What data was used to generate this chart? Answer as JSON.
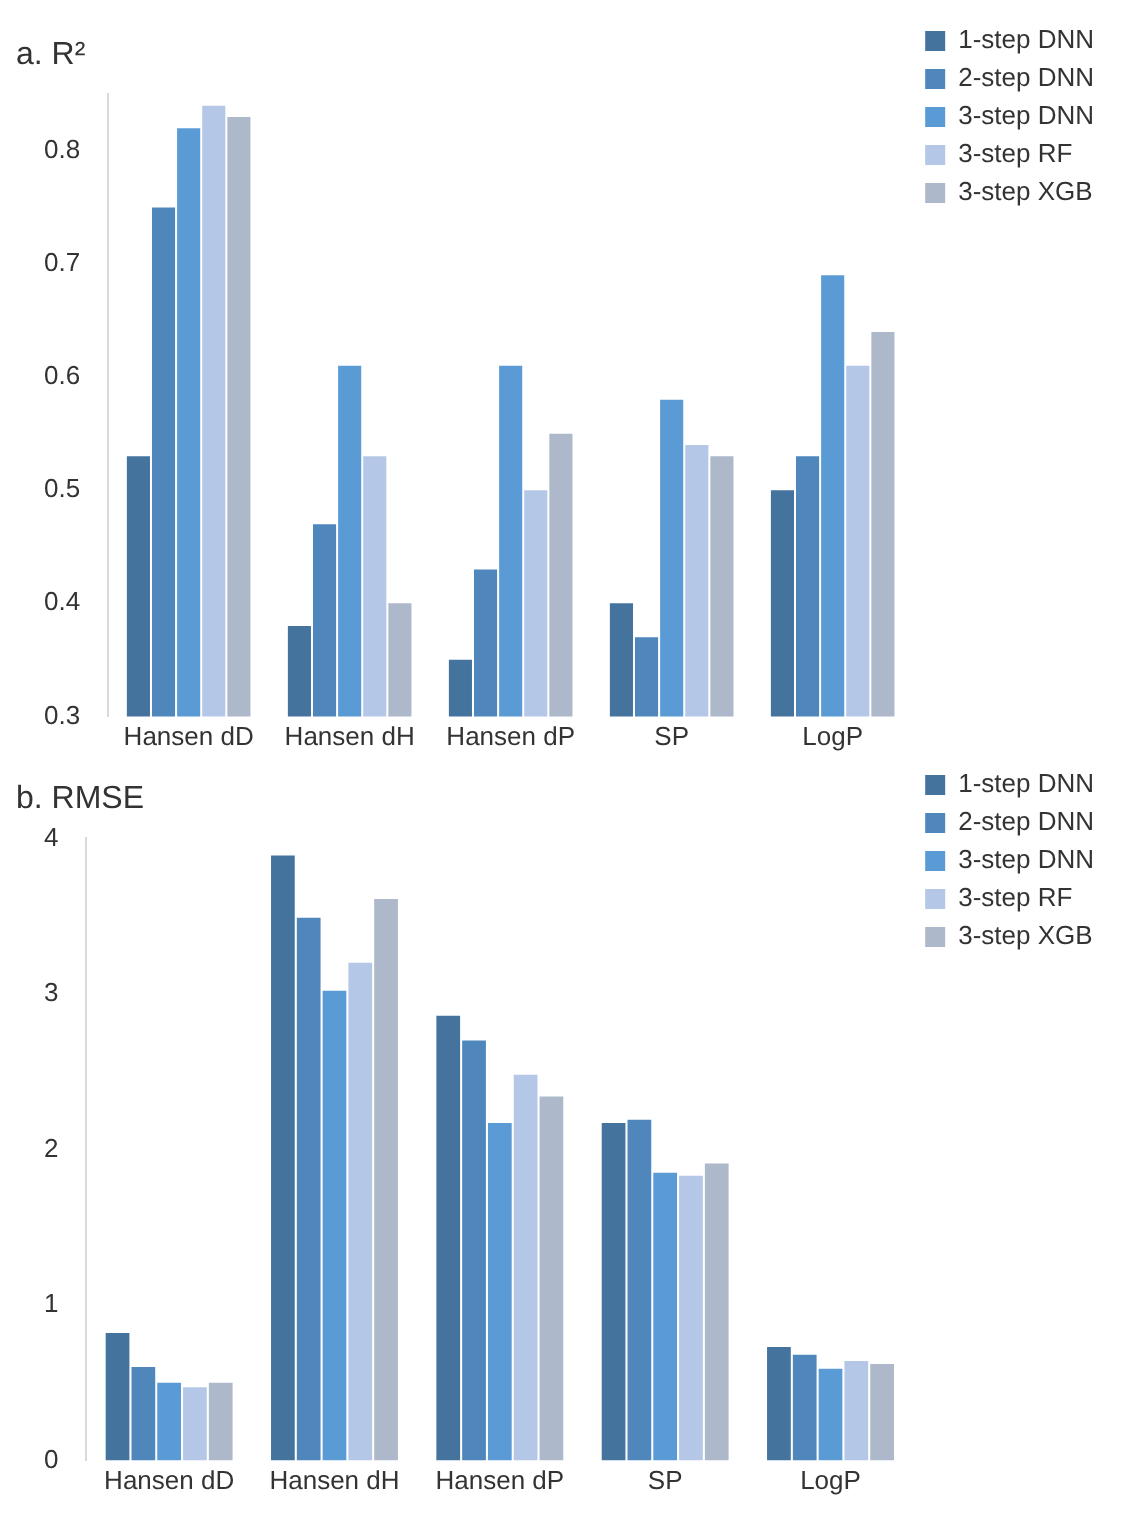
{
  "chart_data": [
    {
      "type": "bar",
      "title": "a. R²",
      "categories": [
        "Hansen dD",
        "Hansen dH",
        "Hansen dP",
        "SP",
        "LogP"
      ],
      "series": [
        {
          "name": "1-step DNN",
          "color": "#44739e",
          "values": [
            0.53,
            0.38,
            0.35,
            0.4,
            0.5
          ]
        },
        {
          "name": "2-step DNN",
          "color": "#4f86bb",
          "values": [
            0.75,
            0.47,
            0.43,
            0.37,
            0.53
          ]
        },
        {
          "name": "3-step DNN",
          "color": "#5b9bd5",
          "values": [
            0.82,
            0.61,
            0.61,
            0.58,
            0.69
          ]
        },
        {
          "name": "3-step RF",
          "color": "#b4c7e7",
          "values": [
            0.84,
            0.53,
            0.5,
            0.54,
            0.61
          ]
        },
        {
          "name": "3-step XGB",
          "color": "#adb9ca",
          "values": [
            0.83,
            0.4,
            0.55,
            0.53,
            0.64
          ]
        }
      ],
      "ylim": [
        0.3,
        0.85
      ],
      "yticks": [
        0.3,
        0.4,
        0.5,
        0.6,
        0.7,
        0.8
      ],
      "grid": false,
      "legend": "top right"
    },
    {
      "type": "bar",
      "title": "b. RMSE",
      "categories": [
        "Hansen dD",
        "Hansen dH",
        "Hansen dP",
        "SP",
        "LogP"
      ],
      "series": [
        {
          "name": "1-step DNN",
          "color": "#44739e",
          "values": [
            0.82,
            3.89,
            2.86,
            2.17,
            0.73
          ]
        },
        {
          "name": "2-step DNN",
          "color": "#4f86bb",
          "values": [
            0.6,
            3.49,
            2.7,
            2.19,
            0.68
          ]
        },
        {
          "name": "3-step DNN",
          "color": "#5b9bd5",
          "values": [
            0.5,
            3.02,
            2.17,
            1.85,
            0.59
          ]
        },
        {
          "name": "3-step RF",
          "color": "#b4c7e7",
          "values": [
            0.47,
            3.2,
            2.48,
            1.83,
            0.64
          ]
        },
        {
          "name": "3-step XGB",
          "color": "#adb9ca",
          "values": [
            0.5,
            3.61,
            2.34,
            1.91,
            0.62
          ]
        }
      ],
      "ylim": [
        0,
        4
      ],
      "yticks": [
        0,
        1,
        2,
        3,
        4
      ],
      "grid": false,
      "legend": "top right"
    }
  ]
}
